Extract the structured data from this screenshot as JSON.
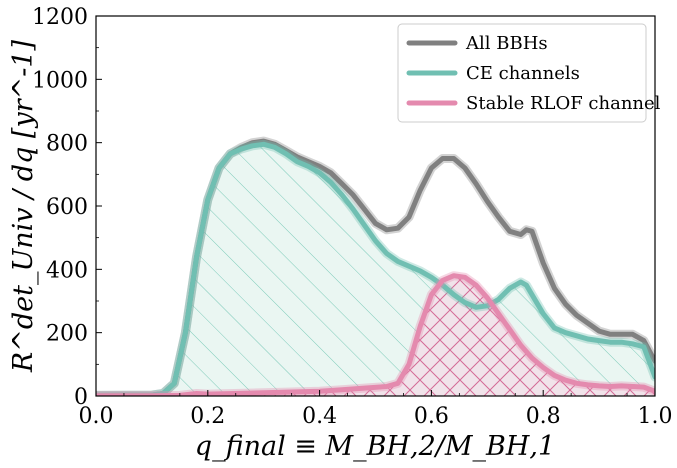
{
  "chart_data": {
    "type": "area",
    "xlabel": "q_final ≡ M_BH,2/M_BH,1",
    "ylabel": "R^det_Univ / dq [yr^-1]",
    "xlim": [
      0.0,
      1.0
    ],
    "ylim": [
      0,
      1200
    ],
    "xticks": [
      "0.0",
      "0.2",
      "0.4",
      "0.6",
      "0.8",
      "1.0"
    ],
    "yticks": [
      "0",
      "200",
      "400",
      "600",
      "800",
      "1000",
      "1200"
    ],
    "legend_position": "top-right",
    "grid": false,
    "series": [
      {
        "name": "All BBHs",
        "color": "#808080",
        "fill": "none",
        "x": [
          0.0,
          0.1,
          0.12,
          0.14,
          0.16,
          0.18,
          0.2,
          0.22,
          0.24,
          0.26,
          0.28,
          0.3,
          0.32,
          0.34,
          0.36,
          0.38,
          0.4,
          0.42,
          0.44,
          0.46,
          0.48,
          0.5,
          0.52,
          0.54,
          0.56,
          0.58,
          0.6,
          0.62,
          0.64,
          0.66,
          0.68,
          0.7,
          0.72,
          0.74,
          0.76,
          0.77,
          0.78,
          0.8,
          0.82,
          0.84,
          0.86,
          0.88,
          0.9,
          0.92,
          0.94,
          0.96,
          0.98,
          1.0
        ],
        "y": [
          2,
          3,
          8,
          40,
          200,
          440,
          620,
          720,
          765,
          785,
          800,
          805,
          795,
          775,
          755,
          740,
          725,
          705,
          670,
          635,
          590,
          545,
          525,
          530,
          565,
          650,
          720,
          750,
          750,
          720,
          670,
          615,
          565,
          520,
          510,
          525,
          520,
          420,
          340,
          290,
          255,
          230,
          205,
          195,
          195,
          195,
          175,
          110
        ]
      },
      {
        "name": "CE channels",
        "color": "#70bfb2",
        "fill": "hatched-teal",
        "x": [
          0.0,
          0.1,
          0.12,
          0.14,
          0.16,
          0.18,
          0.2,
          0.22,
          0.24,
          0.26,
          0.28,
          0.3,
          0.32,
          0.34,
          0.36,
          0.38,
          0.4,
          0.42,
          0.44,
          0.46,
          0.48,
          0.5,
          0.52,
          0.54,
          0.56,
          0.58,
          0.6,
          0.62,
          0.64,
          0.66,
          0.68,
          0.7,
          0.72,
          0.74,
          0.76,
          0.77,
          0.78,
          0.8,
          0.82,
          0.84,
          0.86,
          0.88,
          0.9,
          0.92,
          0.94,
          0.96,
          0.98,
          1.0
        ],
        "y": [
          2,
          3,
          8,
          40,
          200,
          440,
          620,
          720,
          765,
          780,
          790,
          795,
          785,
          765,
          740,
          725,
          705,
          675,
          635,
          590,
          540,
          490,
          450,
          425,
          410,
          395,
          375,
          350,
          320,
          295,
          280,
          285,
          305,
          340,
          360,
          350,
          320,
          260,
          215,
          200,
          190,
          180,
          175,
          170,
          170,
          165,
          155,
          60
        ]
      },
      {
        "name": "Stable RLOF channel",
        "color": "#e48aae",
        "fill": "crosshatched-pink",
        "x": [
          0.0,
          0.1,
          0.15,
          0.18,
          0.2,
          0.3,
          0.4,
          0.44,
          0.48,
          0.52,
          0.54,
          0.56,
          0.58,
          0.6,
          0.62,
          0.64,
          0.66,
          0.68,
          0.7,
          0.72,
          0.74,
          0.76,
          0.78,
          0.8,
          0.82,
          0.84,
          0.86,
          0.88,
          0.9,
          0.92,
          0.94,
          0.96,
          0.98,
          1.0
        ],
        "y": [
          1,
          1,
          2,
          8,
          6,
          10,
          15,
          20,
          25,
          30,
          40,
          100,
          220,
          320,
          365,
          380,
          375,
          350,
          310,
          260,
          210,
          160,
          120,
          90,
          65,
          50,
          40,
          35,
          32,
          30,
          32,
          30,
          28,
          15
        ]
      }
    ]
  }
}
